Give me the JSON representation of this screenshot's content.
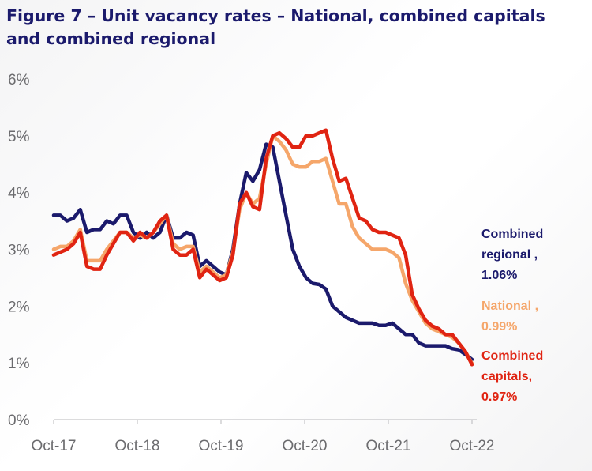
{
  "chart_data": {
    "type": "line",
    "title": "Figure 7 – Unit vacancy rates – National, combined capitals and combined regional",
    "xlabel": "",
    "ylabel": "",
    "x_ticks": [
      "Oct-17",
      "Oct-18",
      "Oct-19",
      "Oct-20",
      "Oct-21",
      "Oct-22"
    ],
    "y_ticks": [
      "0%",
      "1%",
      "2%",
      "3%",
      "4%",
      "5%",
      "6%"
    ],
    "ylim": [
      0,
      6
    ],
    "grid": false,
    "legend": "direct labels at line ends (right)",
    "series": [
      {
        "key": "regional",
        "color": "#1b1a6c",
        "label_lines": [
          "Combined",
          "regional ,",
          "1.06%"
        ],
        "values": [
          3.6,
          3.6,
          3.5,
          3.55,
          3.7,
          3.3,
          3.35,
          3.35,
          3.5,
          3.45,
          3.6,
          3.6,
          3.3,
          3.2,
          3.3,
          3.2,
          3.3,
          3.6,
          3.2,
          3.2,
          3.3,
          3.25,
          2.7,
          2.8,
          2.7,
          2.6,
          2.55,
          3.0,
          3.8,
          4.35,
          4.2,
          4.4,
          4.85,
          4.8,
          4.2,
          3.6,
          3.0,
          2.7,
          2.5,
          2.4,
          2.38,
          2.3,
          2.0,
          1.9,
          1.8,
          1.75,
          1.7,
          1.7,
          1.7,
          1.66,
          1.66,
          1.7,
          1.6,
          1.5,
          1.5,
          1.35,
          1.3,
          1.3,
          1.3,
          1.3,
          1.25,
          1.23,
          1.15,
          1.06
        ]
      },
      {
        "key": "national",
        "color": "#f5a66a",
        "label_lines": [
          "National ,",
          "0.99%"
        ],
        "values": [
          3.0,
          3.05,
          3.05,
          3.15,
          3.35,
          2.8,
          2.8,
          2.8,
          3.0,
          3.15,
          3.3,
          3.3,
          3.2,
          3.25,
          3.2,
          3.3,
          3.45,
          3.6,
          3.1,
          3.0,
          3.05,
          3.05,
          2.6,
          2.7,
          2.6,
          2.5,
          2.55,
          2.95,
          3.7,
          4.0,
          3.8,
          3.9,
          4.5,
          5.0,
          4.9,
          4.75,
          4.5,
          4.45,
          4.45,
          4.55,
          4.55,
          4.6,
          4.2,
          3.8,
          3.8,
          3.4,
          3.2,
          3.1,
          3.0,
          3.0,
          3.0,
          2.95,
          2.85,
          2.4,
          2.1,
          1.9,
          1.7,
          1.6,
          1.55,
          1.5,
          1.45,
          1.35,
          1.2,
          0.99
        ]
      },
      {
        "key": "capitals",
        "color": "#e02412",
        "label_lines": [
          "Combined",
          "capitals,",
          "0.97%"
        ],
        "values": [
          2.9,
          2.95,
          3.0,
          3.1,
          3.3,
          2.7,
          2.65,
          2.65,
          2.9,
          3.1,
          3.3,
          3.3,
          3.15,
          3.3,
          3.2,
          3.3,
          3.5,
          3.6,
          3.0,
          2.9,
          2.9,
          3.0,
          2.5,
          2.65,
          2.55,
          2.45,
          2.5,
          2.9,
          3.8,
          4.0,
          3.75,
          3.7,
          4.6,
          5.0,
          5.05,
          4.95,
          4.8,
          4.8,
          5.0,
          5.0,
          5.05,
          5.1,
          4.6,
          4.2,
          4.25,
          3.9,
          3.55,
          3.5,
          3.35,
          3.3,
          3.3,
          3.25,
          3.2,
          2.9,
          2.2,
          1.95,
          1.75,
          1.65,
          1.6,
          1.5,
          1.5,
          1.35,
          1.2,
          0.97
        ]
      }
    ]
  }
}
